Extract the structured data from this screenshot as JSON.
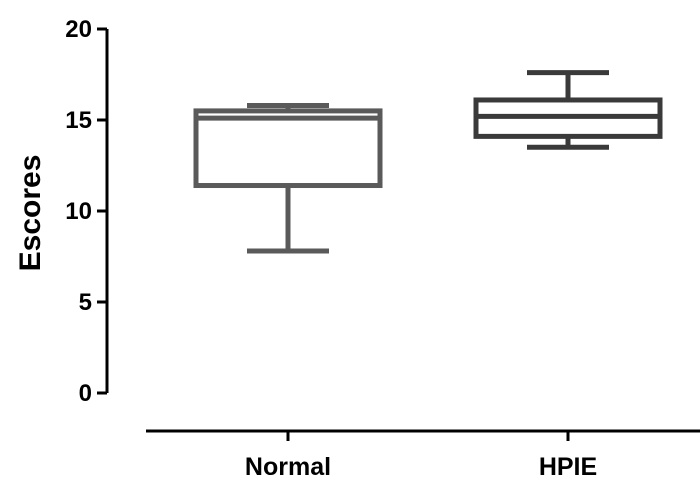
{
  "chart_data": {
    "type": "boxplot",
    "title": "",
    "xlabel": "",
    "ylabel": "Escores",
    "ylim": [
      0,
      20
    ],
    "yticks": [
      0,
      5,
      10,
      15,
      20
    ],
    "ytick_labels": [
      "0",
      "5",
      "10",
      "15",
      "20"
    ],
    "grid": false,
    "legend": "none",
    "categories": [
      "Normal",
      "HPIE"
    ],
    "boxes": [
      {
        "category": "Normal",
        "min": 7.8,
        "q1": 11.4,
        "median": 15.1,
        "q3": 15.5,
        "max": 15.8,
        "color": "#5a5a5a"
      },
      {
        "category": "HPIE",
        "min": 13.5,
        "q1": 14.1,
        "median": 15.2,
        "q3": 16.1,
        "max": 17.6,
        "color": "#3a3a3a"
      }
    ]
  }
}
